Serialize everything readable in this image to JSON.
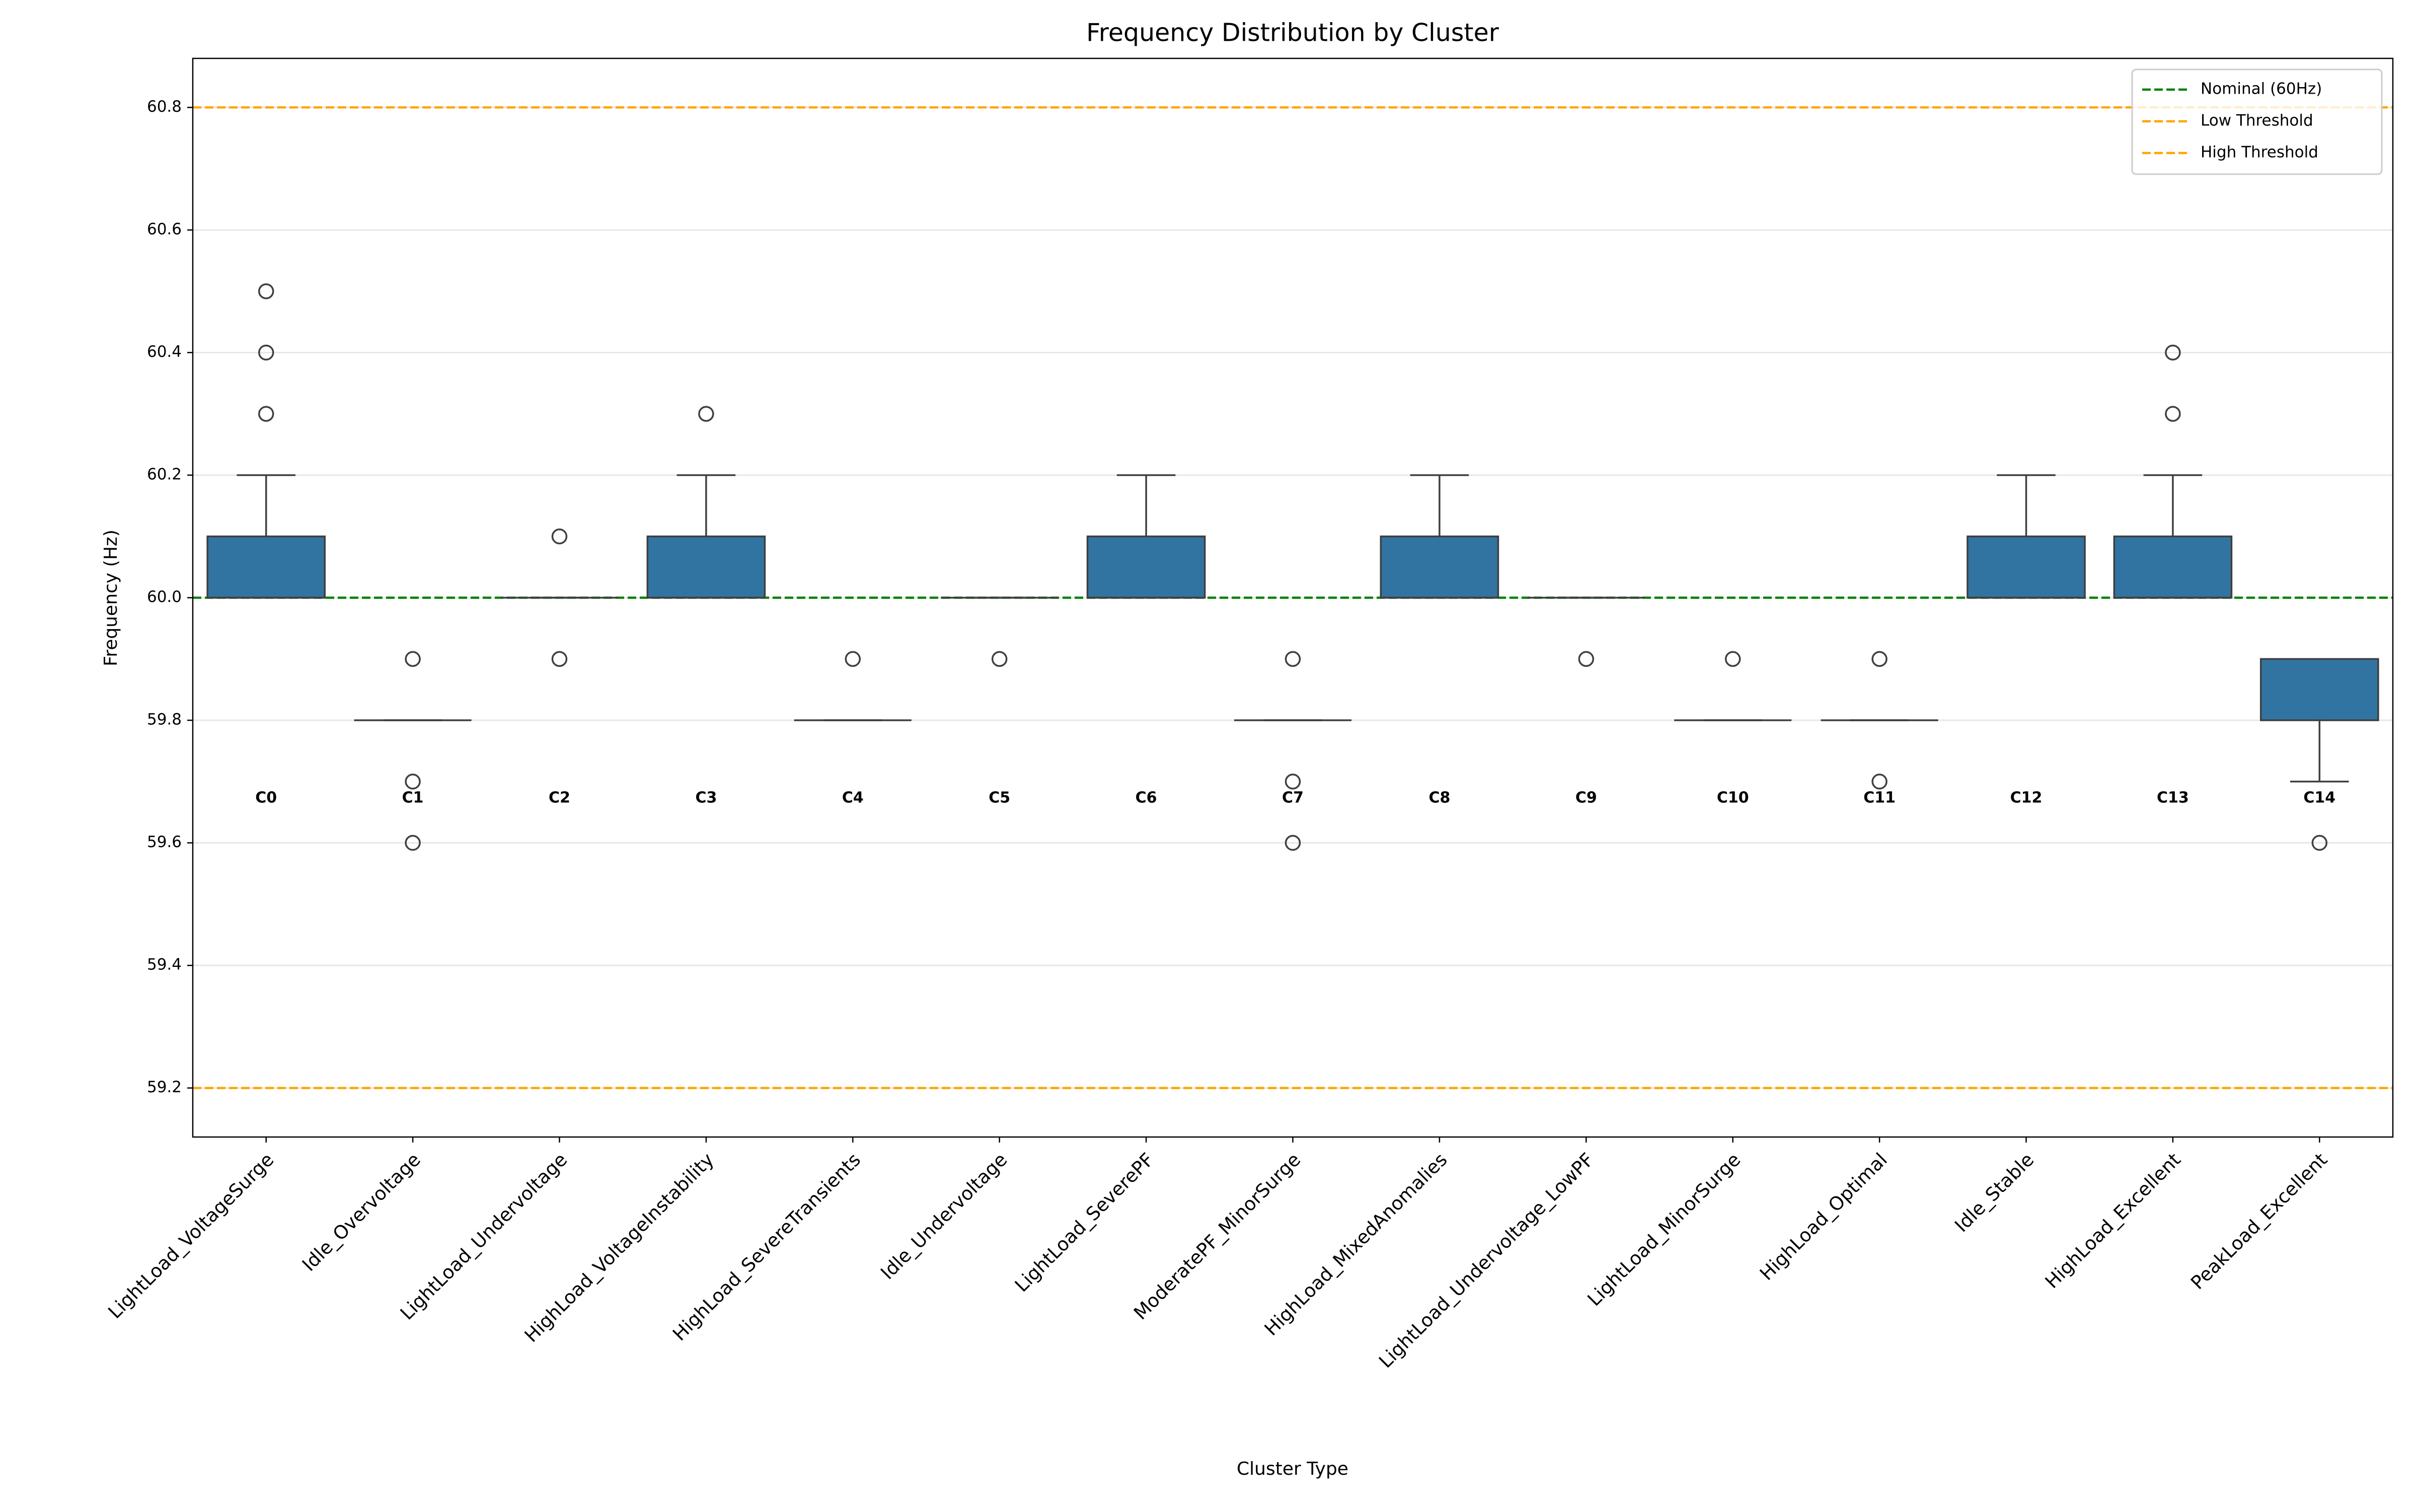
{
  "chart_data": {
    "type": "box",
    "title": "Frequency Distribution by Cluster",
    "x_label": "Cluster Type",
    "y_label": "Frequency (Hz)",
    "categories": [
      "LightLoad_VoltageSurge",
      "Idle_Overvoltage",
      "LightLoad_Undervoltage",
      "HighLoad_VoltageInstability",
      "HighLoad_SevereTransients",
      "Idle_Undervoltage",
      "LightLoad_SeverePF",
      "ModeratePF_MinorSurge",
      "HighLoad_MixedAnomalies",
      "LightLoad_Undervoltage_LowPF",
      "LightLoad_MinorSurge",
      "HighLoad_Optimal",
      "Idle_Stable",
      "HighLoad_Excellent",
      "PeakLoad_Excellent"
    ],
    "annotations": [
      "C0",
      "C1",
      "C2",
      "C3",
      "C4",
      "C5",
      "C6",
      "C7",
      "C8",
      "C9",
      "C10",
      "C11",
      "C12",
      "C13",
      "C14"
    ],
    "color": "#3274a1",
    "stats": [
      {
        "whislo": 60.0,
        "q1": 60.0,
        "median": 60.0,
        "q3": 60.1,
        "whishi": 60.2,
        "fliers": [
          60.3,
          60.4,
          60.5
        ]
      },
      {
        "whislo": 59.8,
        "q1": 59.8,
        "median": 59.8,
        "q3": 59.8,
        "whishi": 59.8,
        "fliers": [
          59.9,
          59.7,
          59.6
        ]
      },
      {
        "whislo": 60.0,
        "q1": 60.0,
        "median": 60.0,
        "q3": 60.0,
        "whishi": 60.0,
        "fliers": [
          60.1,
          59.9
        ]
      },
      {
        "whislo": 60.0,
        "q1": 60.0,
        "median": 60.0,
        "q3": 60.1,
        "whishi": 60.2,
        "fliers": [
          60.3
        ]
      },
      {
        "whislo": 59.8,
        "q1": 59.8,
        "median": 59.8,
        "q3": 59.8,
        "whishi": 59.8,
        "fliers": [
          59.9
        ]
      },
      {
        "whislo": 60.0,
        "q1": 60.0,
        "median": 60.0,
        "q3": 60.0,
        "whishi": 60.0,
        "fliers": [
          59.9
        ]
      },
      {
        "whislo": 60.0,
        "q1": 60.0,
        "median": 60.0,
        "q3": 60.1,
        "whishi": 60.2,
        "fliers": []
      },
      {
        "whislo": 59.8,
        "q1": 59.8,
        "median": 59.8,
        "q3": 59.8,
        "whishi": 59.8,
        "fliers": [
          59.9,
          59.7,
          59.6
        ]
      },
      {
        "whislo": 60.0,
        "q1": 60.0,
        "median": 60.0,
        "q3": 60.1,
        "whishi": 60.2,
        "fliers": []
      },
      {
        "whislo": 60.0,
        "q1": 60.0,
        "median": 60.0,
        "q3": 60.0,
        "whishi": 60.0,
        "fliers": [
          59.9
        ]
      },
      {
        "whislo": 59.8,
        "q1": 59.8,
        "median": 59.8,
        "q3": 59.8,
        "whishi": 59.8,
        "fliers": [
          59.9
        ]
      },
      {
        "whislo": 59.8,
        "q1": 59.8,
        "median": 59.8,
        "q3": 59.8,
        "whishi": 59.8,
        "fliers": [
          59.9,
          59.7
        ]
      },
      {
        "whislo": 60.0,
        "q1": 60.0,
        "median": 60.0,
        "q3": 60.1,
        "whishi": 60.2,
        "fliers": []
      },
      {
        "whislo": 60.0,
        "q1": 60.0,
        "median": 60.0,
        "q3": 60.1,
        "whishi": 60.2,
        "fliers": [
          60.3,
          60.4
        ]
      },
      {
        "whislo": 59.7,
        "q1": 59.8,
        "median": 59.9,
        "q3": 59.9,
        "whishi": 59.9,
        "fliers": [
          59.6
        ]
      }
    ],
    "reference_lines": [
      {
        "name": "Nominal (60Hz)",
        "value": 60.0,
        "color": "#008000"
      },
      {
        "name": "Low Threshold",
        "value": 59.2,
        "color": "#ffa500"
      },
      {
        "name": "High Threshold",
        "value": 60.8,
        "color": "#ffa500"
      }
    ],
    "ylim": [
      59.12,
      60.88
    ],
    "yticks": [
      59.2,
      59.4,
      59.6,
      59.8,
      {
        "value": 60.0,
        "label": "60.0"
      },
      60.2,
      60.4,
      60.6,
      60.8
    ],
    "grid": true,
    "legend": "upper right"
  }
}
